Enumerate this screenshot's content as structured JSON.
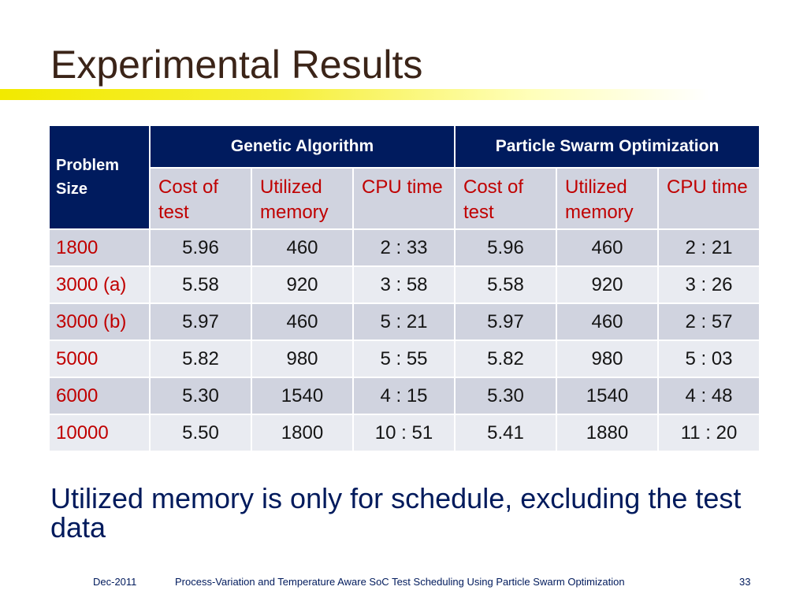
{
  "slide": {
    "title": "Experimental Results",
    "note": "Utilized memory is only for schedule, excluding the test data"
  },
  "table": {
    "problem_size_header": "Problem Size",
    "group_headers": [
      "Genetic Algorithm",
      "Particle Swarm Optimization"
    ],
    "sub_headers": [
      "Cost of test",
      "Utilized memory",
      "CPU time",
      "Cost of test",
      "Utilized memory",
      "CPU time"
    ],
    "rows": [
      {
        "size": "1800",
        "values": [
          "5.96",
          "460",
          "2 : 33",
          "5.96",
          "460",
          "2 : 21"
        ]
      },
      {
        "size": "3000 (a)",
        "values": [
          "5.58",
          "920",
          "3 : 58",
          "5.58",
          "920",
          "3 : 26"
        ]
      },
      {
        "size": "3000 (b)",
        "values": [
          "5.97",
          "460",
          "5 : 21",
          "5.97",
          "460",
          "2 : 57"
        ]
      },
      {
        "size": "5000",
        "values": [
          "5.82",
          "980",
          "5 : 55",
          "5.82",
          "980",
          "5 : 03"
        ]
      },
      {
        "size": "6000",
        "values": [
          "5.30",
          "1540",
          "4 : 15",
          "5.30",
          "1540",
          "4 : 48"
        ]
      },
      {
        "size": "10000",
        "values": [
          "5.50",
          "1800",
          "10 : 51",
          "5.41",
          "1880",
          "11 : 20"
        ]
      }
    ]
  },
  "footer": {
    "date": "Dec-2011",
    "paper_title": "Process-Variation and Temperature Aware SoC Test Scheduling Using Particle Swarm Optimization",
    "page_number": "33"
  },
  "colors": {
    "header_bg": "#001b5e",
    "accent_red": "#c00000",
    "title_bar": "#f2ea00"
  }
}
